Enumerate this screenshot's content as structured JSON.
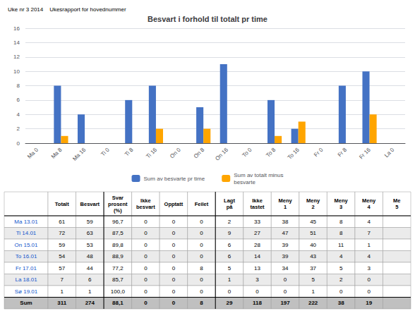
{
  "chart_data": {
    "type": "bar",
    "title": "Besvart i forhold til totalt pr time",
    "subtitle": "Uke nr 3 2014    Ukesrapport for hovednummer",
    "categories": [
      "Ma 0",
      "Ma 8",
      "Ma 16",
      "Ti 0",
      "Ti 8",
      "Ti 16",
      "On 0",
      "On 8",
      "On 16",
      "To 0",
      "To 8",
      "To 16",
      "Fr 0",
      "Fr 8",
      "Fr 16",
      "La 0"
    ],
    "series": [
      {
        "name": "Sum av besvarte pr time",
        "color": "#4472C4",
        "values": [
          0,
          8,
          4,
          0,
          6,
          8,
          0,
          5,
          11,
          0,
          6,
          2,
          0,
          8,
          10,
          0
        ]
      },
      {
        "name": "Sum av totalt minus\nbesvarte",
        "color": "#FFA500",
        "values": [
          0,
          1,
          0,
          0,
          0,
          2,
          0,
          2,
          0,
          0,
          1,
          3,
          0,
          0,
          4,
          0
        ]
      }
    ],
    "ylim": [
      0,
      16
    ],
    "yticks": [
      0,
      2,
      4,
      6,
      8,
      10,
      12,
      14,
      16
    ],
    "grid": true,
    "legend": "bottom",
    "table": {
      "headers": [
        "",
        "Totalt",
        "Besvart",
        "Svar\nprosent\n(%)",
        "Ikke\nbesvart",
        "Opptatt",
        "Feilet",
        "Lagt\npå",
        "Ikke\ntastet",
        "Meny\n1",
        "Meny\n2",
        "Meny\n3",
        "Meny\n4",
        "Me\n5"
      ],
      "rows": [
        [
          "Ma 13.01",
          "61",
          "59",
          "96,7",
          "0",
          "0",
          "0",
          "2",
          "33",
          "38",
          "45",
          "8",
          "4",
          ""
        ],
        [
          "Ti 14.01",
          "72",
          "63",
          "87,5",
          "0",
          "0",
          "0",
          "9",
          "27",
          "47",
          "51",
          "8",
          "7",
          ""
        ],
        [
          "On 15.01",
          "59",
          "53",
          "89,8",
          "0",
          "0",
          "0",
          "6",
          "28",
          "39",
          "40",
          "11",
          "1",
          ""
        ],
        [
          "To 16.01",
          "54",
          "48",
          "88,9",
          "0",
          "0",
          "0",
          "6",
          "14",
          "39",
          "43",
          "4",
          "4",
          ""
        ],
        [
          "Fr 17.01",
          "57",
          "44",
          "77,2",
          "0",
          "0",
          "8",
          "5",
          "13",
          "34",
          "37",
          "5",
          "3",
          ""
        ],
        [
          "La 18.01",
          "7",
          "6",
          "85,7",
          "0",
          "0",
          "0",
          "1",
          "3",
          "0",
          "5",
          "2",
          "0",
          ""
        ],
        [
          "Sø 19.01",
          "1",
          "1",
          "100,0",
          "0",
          "0",
          "0",
          "0",
          "0",
          "0",
          "1",
          "0",
          "0",
          ""
        ],
        [
          "Sum",
          "311",
          "274",
          "88,1",
          "0",
          "0",
          "8",
          "29",
          "118",
          "197",
          "222",
          "38",
          "19",
          ""
        ]
      ]
    }
  }
}
